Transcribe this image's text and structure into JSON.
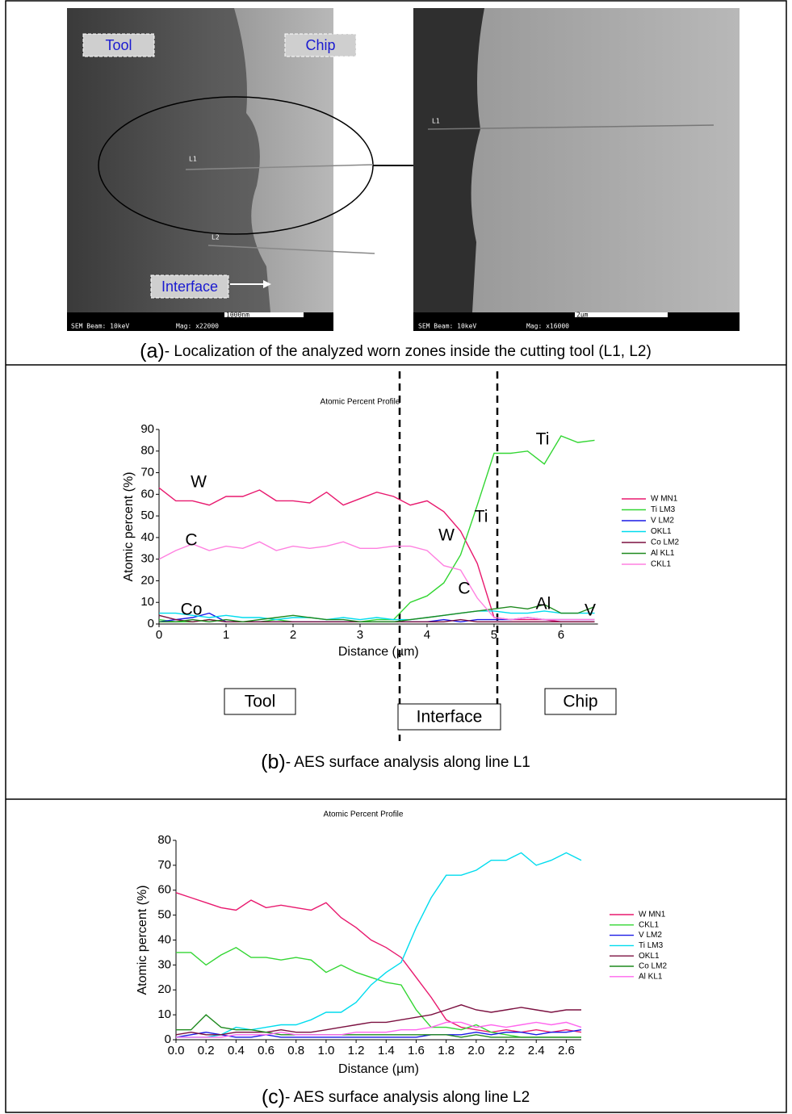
{
  "panel_a": {
    "tool": "Tool",
    "chip": "Chip",
    "interface": "Interface",
    "line1": "L1",
    "line2": "L2",
    "line1_zoom": "L1",
    "sem_left": "SEM   Beam: 10keV",
    "mag_left": "Mag: x22000",
    "scale_left": "1000nm",
    "sem_right": "SEM   Beam: 10keV",
    "mag_right": "Mag: x16000",
    "scale_right": "2µm",
    "caption_label": "(a)",
    "caption_text": "- Localization of the analyzed worn zones inside the cutting tool (L1, L2)"
  },
  "chart_data": [
    {
      "type": "line",
      "title": "Atomic Percent Profile",
      "x_label": "Distance (µm)",
      "y_label": "Atomic percent (%)",
      "x": [
        0,
        0.25,
        0.5,
        0.75,
        1,
        1.25,
        1.5,
        1.75,
        2,
        2.25,
        2.5,
        2.75,
        3,
        3.25,
        3.5,
        3.75,
        4,
        4.25,
        4.5,
        4.75,
        5,
        5.25,
        5.5,
        5.75,
        6,
        6.25,
        6.5
      ],
      "xlim": [
        0,
        6.55
      ],
      "xticks": [
        0,
        1,
        2,
        3,
        4,
        5,
        6
      ],
      "ylim": [
        0,
        90
      ],
      "yticks": [
        0,
        10,
        20,
        30,
        40,
        50,
        60,
        70,
        80,
        90
      ],
      "series": [
        {
          "name": "W MN1",
          "color": "#e8196e",
          "values": [
            63,
            57,
            57,
            55,
            59,
            59,
            62,
            57,
            57,
            56,
            61,
            55,
            58,
            61,
            59,
            55,
            57,
            52,
            43,
            28,
            3,
            2,
            2,
            2,
            1,
            1,
            1
          ]
        },
        {
          "name": "Ti LM3",
          "color": "#33d633",
          "values": [
            2,
            1,
            1,
            2,
            1,
            1,
            1,
            2,
            1,
            1,
            1,
            1,
            1,
            2,
            2,
            10,
            13,
            19,
            32,
            55,
            79,
            79,
            80,
            74,
            87,
            84,
            85
          ]
        },
        {
          "name": "V LM2",
          "color": "#1a1ae6",
          "values": [
            1,
            2,
            3,
            5,
            1,
            1,
            1,
            1,
            1,
            1,
            1,
            1,
            1,
            1,
            1,
            1,
            1,
            2,
            1,
            2,
            2,
            2,
            3,
            2,
            2,
            2,
            2
          ]
        },
        {
          "name": "OKL1",
          "color": "#00dcee",
          "values": [
            5,
            5,
            4,
            3,
            4,
            3,
            3,
            2,
            3,
            3,
            2,
            3,
            2,
            3,
            2,
            2,
            3,
            4,
            5,
            6,
            6,
            5,
            5,
            6,
            5,
            5,
            5
          ]
        },
        {
          "name": "Co LM2",
          "color": "#7b1040",
          "values": [
            4,
            2,
            1,
            2,
            1,
            1,
            1,
            1,
            1,
            1,
            1,
            1,
            1,
            1,
            1,
            1,
            1,
            1,
            2,
            1,
            1,
            1,
            1,
            1,
            1,
            1,
            1
          ]
        },
        {
          "name": "Al KL1",
          "color": "#1f8a1f",
          "values": [
            1,
            1,
            2,
            1,
            2,
            1,
            2,
            3,
            4,
            3,
            2,
            2,
            1,
            1,
            1,
            2,
            3,
            4,
            5,
            6,
            7,
            8,
            7,
            9,
            5,
            5,
            8
          ]
        },
        {
          "name": "CKL1",
          "color": "#ff80e0",
          "values": [
            30,
            34,
            37,
            34,
            36,
            35,
            38,
            34,
            36,
            35,
            36,
            38,
            35,
            35,
            36,
            36,
            34,
            27,
            25,
            12,
            3,
            2,
            3,
            2,
            2,
            2,
            2
          ]
        }
      ],
      "annotations": [
        "W",
        "C",
        "Co",
        "Ti",
        "W",
        "Ti",
        "C",
        "Al",
        "V"
      ],
      "regions": [
        "Tool",
        "Interface",
        "Chip"
      ],
      "caption_label": "(b)",
      "caption_text": "- AES surface analysis along line L1"
    },
    {
      "type": "line",
      "title": "Atomic Percent Profile",
      "x_label": "Distance (µm)",
      "y_label": "Atomic percent (%)",
      "x": [
        0,
        0.1,
        0.2,
        0.3,
        0.4,
        0.5,
        0.6,
        0.7,
        0.8,
        0.9,
        1,
        1.1,
        1.2,
        1.3,
        1.4,
        1.5,
        1.6,
        1.7,
        1.8,
        1.9,
        2,
        2.1,
        2.2,
        2.3,
        2.4,
        2.5,
        2.6,
        2.7
      ],
      "xlim": [
        0,
        2.7
      ],
      "xticks": [
        {
          "value": 0,
          "label": "0.0"
        },
        0.2,
        0.4,
        0.6,
        0.8,
        {
          "value": 1,
          "label": "1.0"
        },
        1.2,
        1.4,
        1.6,
        1.8,
        {
          "value": 2,
          "label": "2.0"
        },
        2.2,
        2.4,
        2.6
      ],
      "ylim": [
        0,
        80
      ],
      "yticks": [
        0,
        10,
        20,
        30,
        40,
        50,
        60,
        70,
        80
      ],
      "series": [
        {
          "name": "W MN1",
          "color": "#e8196e",
          "values": [
            59,
            57,
            55,
            53,
            52,
            56,
            53,
            54,
            53,
            52,
            55,
            49,
            45,
            40,
            37,
            33,
            25,
            17,
            8,
            5,
            4,
            3,
            4,
            3,
            4,
            3,
            4,
            3
          ]
        },
        {
          "name": "CKL1",
          "color": "#33d633",
          "values": [
            35,
            35,
            30,
            34,
            37,
            33,
            33,
            32,
            33,
            32,
            27,
            30,
            27,
            25,
            23,
            22,
            12,
            5,
            5,
            4,
            6,
            3,
            2,
            1,
            1,
            1,
            1,
            1
          ]
        },
        {
          "name": "V LM2",
          "color": "#1a1ae6",
          "values": [
            1,
            2,
            3,
            2,
            1,
            1,
            2,
            1,
            1,
            1,
            1,
            1,
            1,
            1,
            1,
            1,
            1,
            2,
            2,
            2,
            3,
            2,
            3,
            3,
            2,
            3,
            3,
            4
          ]
        },
        {
          "name": "Ti LM3",
          "color": "#00dcee",
          "values": [
            1,
            1,
            1,
            2,
            5,
            4,
            5,
            6,
            6,
            8,
            11,
            11,
            15,
            22,
            27,
            31,
            45,
            57,
            66,
            66,
            68,
            72,
            72,
            75,
            70,
            72,
            75,
            72
          ]
        },
        {
          "name": "OKL1",
          "color": "#7b1040",
          "values": [
            2,
            3,
            2,
            2,
            3,
            3,
            3,
            4,
            3,
            3,
            4,
            5,
            6,
            7,
            7,
            8,
            9,
            10,
            12,
            14,
            12,
            11,
            12,
            13,
            12,
            11,
            12,
            12
          ]
        },
        {
          "name": "Co LM2",
          "color": "#1f8a1f",
          "values": [
            4,
            4,
            10,
            5,
            4,
            4,
            3,
            2,
            2,
            2,
            2,
            2,
            2,
            2,
            2,
            2,
            2,
            2,
            2,
            1,
            2,
            1,
            1,
            1,
            1,
            1,
            1,
            1
          ]
        },
        {
          "name": "Al KL1",
          "color": "#ff66ee",
          "values": [
            1,
            1,
            1,
            1,
            2,
            2,
            2,
            3,
            2,
            2,
            2,
            2,
            3,
            3,
            3,
            4,
            4,
            5,
            7,
            7,
            5,
            6,
            5,
            6,
            7,
            6,
            7,
            5
          ]
        }
      ],
      "caption_label": "(c)",
      "caption_text": "- AES surface analysis along line L2"
    }
  ]
}
